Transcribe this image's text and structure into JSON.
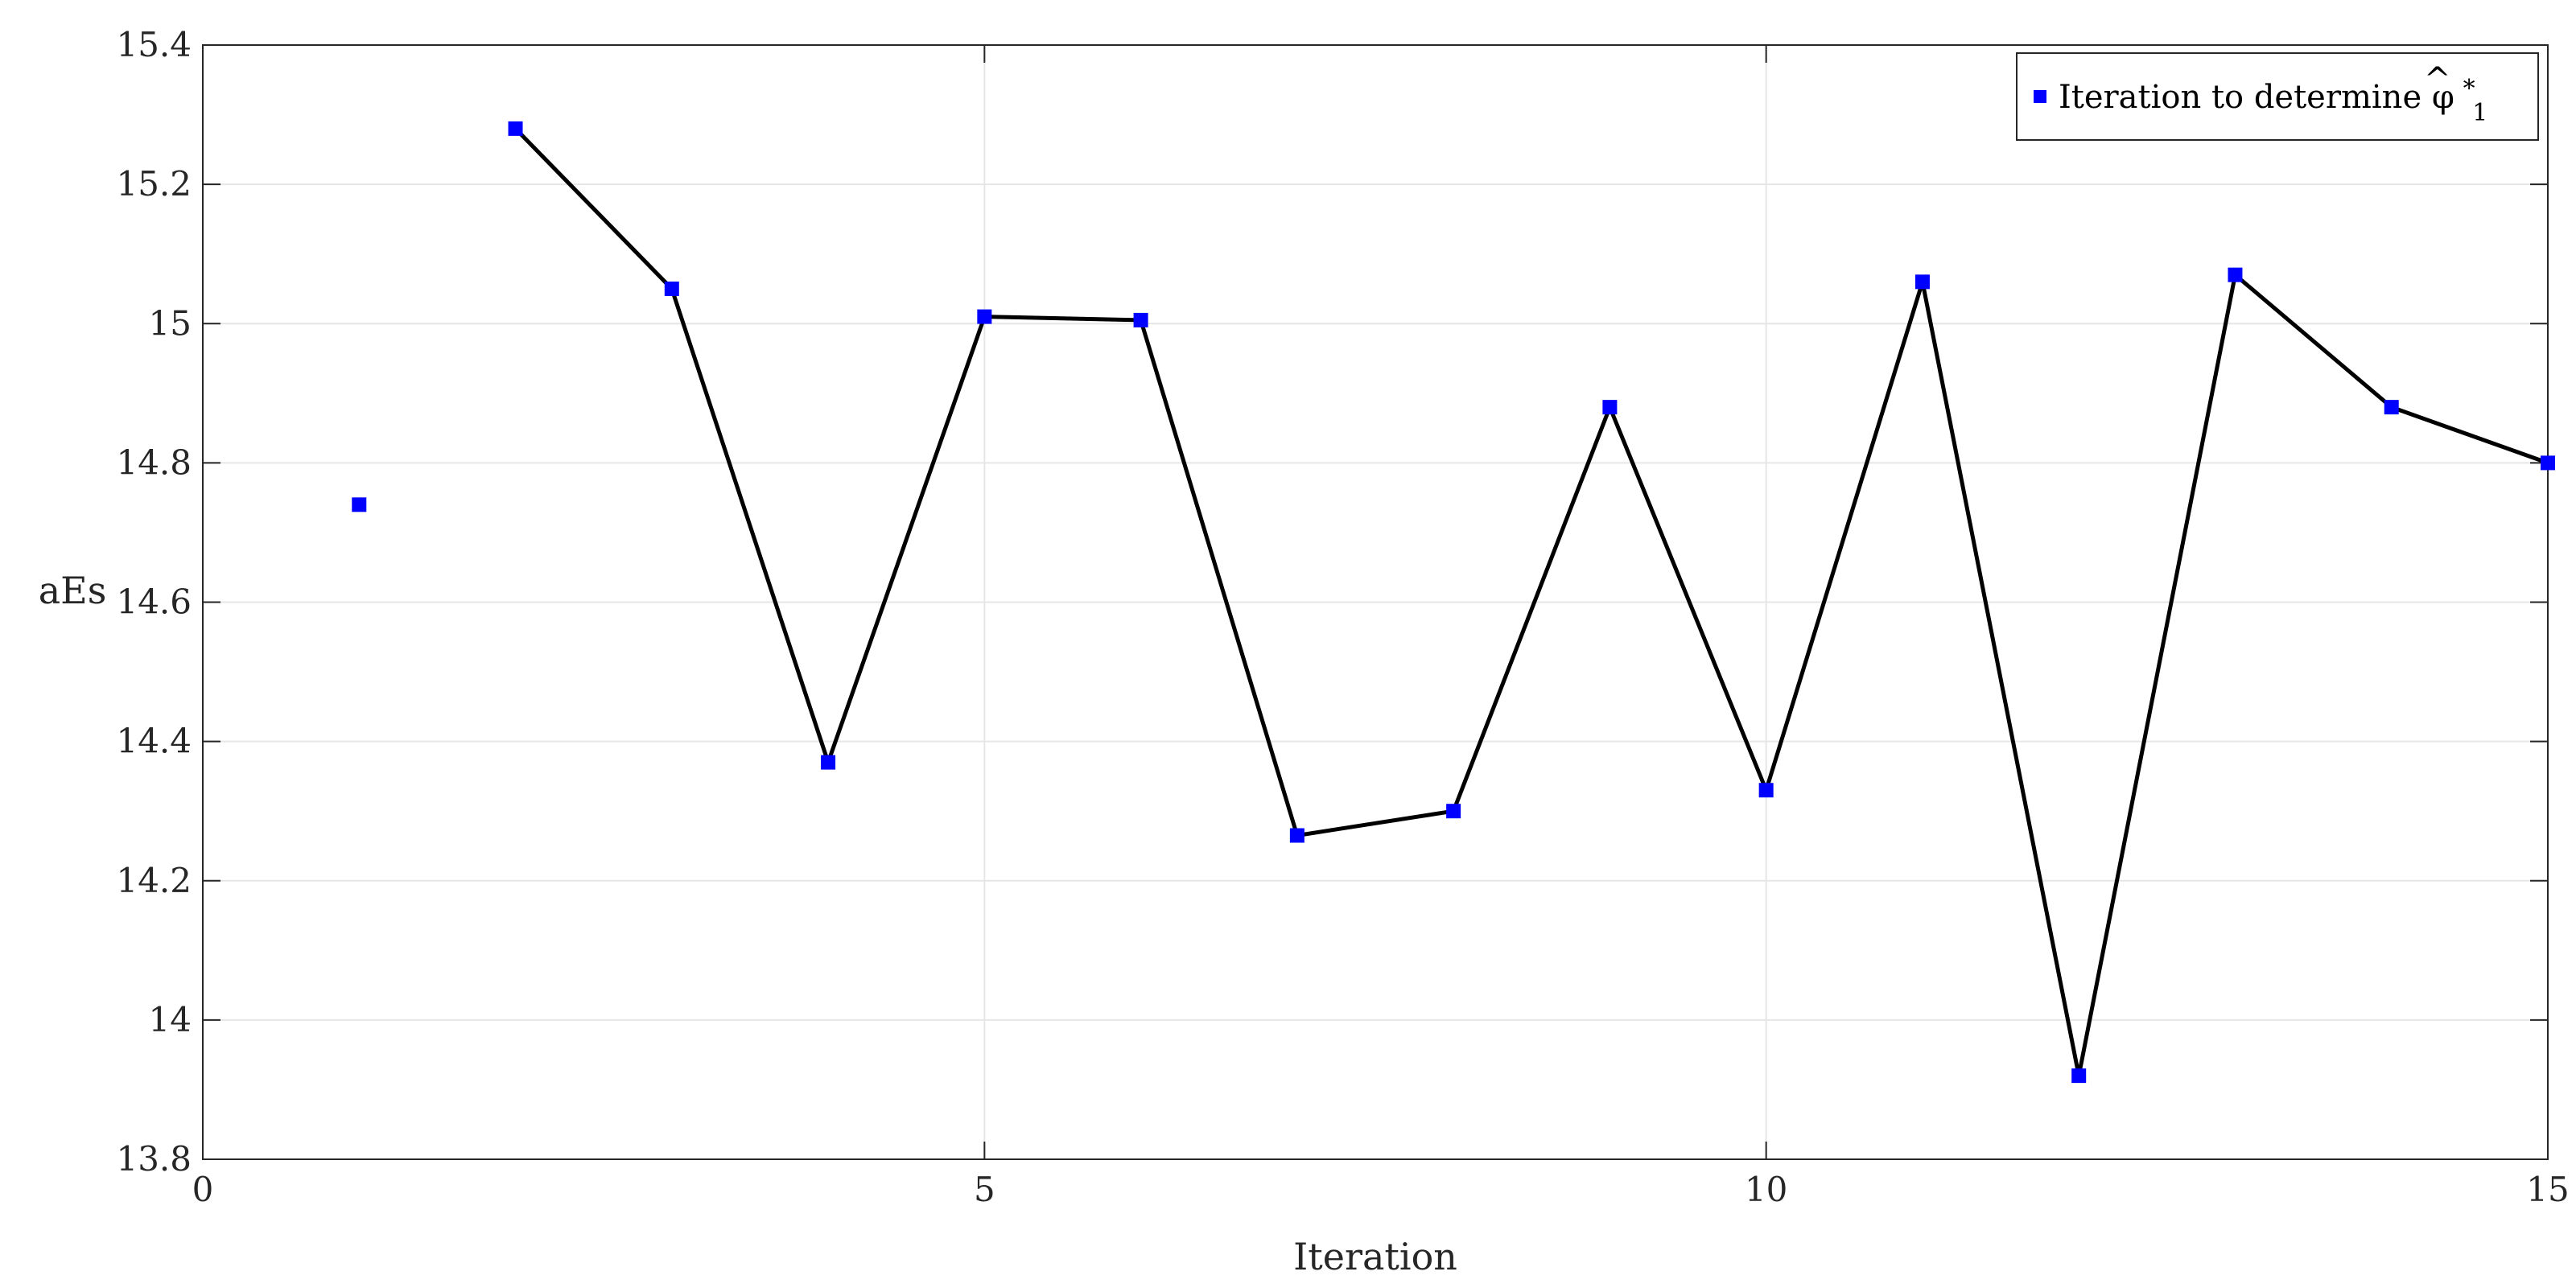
{
  "chart_data": {
    "type": "line",
    "xlabel": "Iteration",
    "ylabel": "aEs",
    "xlim": [
      0,
      15
    ],
    "ylim": [
      13.8,
      15.4
    ],
    "xticks": [
      "0",
      "5",
      "10",
      "15"
    ],
    "yticks": [
      "13.8",
      "14",
      "14.2",
      "14.4",
      "14.6",
      "14.8",
      "15",
      "15.2",
      "15.4"
    ],
    "grid": true,
    "legend_position": "top-right",
    "series": [
      {
        "name": "Iteration to determine φ̂₁*",
        "legend_main": "Iteration to determine ",
        "legend_symbol": "φ",
        "legend_hat": "^",
        "legend_sup": "*",
        "legend_sub": "1",
        "marker": "square",
        "marker_color": "#0000ff",
        "line_color": "#000000",
        "x": [
          1,
          2,
          3,
          4,
          5,
          6,
          7,
          8,
          9,
          10,
          11,
          12,
          13,
          14,
          15
        ],
        "y": [
          14.74,
          15.28,
          15.05,
          14.37,
          15.01,
          15.005,
          14.265,
          14.3,
          14.88,
          14.33,
          15.06,
          13.92,
          15.07,
          14.88,
          14.8
        ],
        "line_start_index": 1
      }
    ]
  }
}
